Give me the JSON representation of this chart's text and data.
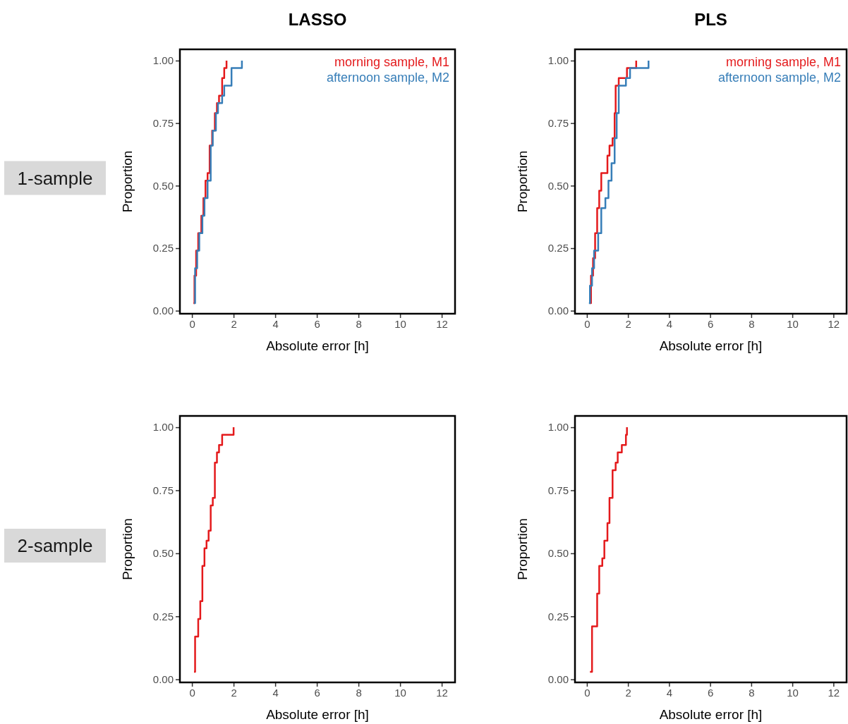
{
  "chart_data": [
    {
      "type": "step",
      "title": "LASSO",
      "annotations": [
        "1-sample"
      ],
      "xlabel": "Absolute error [h]",
      "ylabel": "Proportion",
      "xlim": [
        -0.58,
        12.64
      ],
      "ylim": [
        -0.012,
        1.045
      ],
      "xticks": [
        0,
        2,
        4,
        6,
        8,
        10,
        12
      ],
      "yticks": [
        {
          "value": 0,
          "label": "0.00"
        },
        {
          "value": 0.25,
          "label": "0.25"
        },
        {
          "value": 0.5,
          "label": "0.50"
        },
        {
          "value": 0.75,
          "label": "0.75"
        },
        {
          "value": 1,
          "label": "1.00"
        }
      ],
      "grid": false,
      "legend": "top right",
      "line_style": "solid",
      "marker": "none",
      "series": [
        {
          "name": "morning sample, M1",
          "color": "#e41a1c",
          "x": [
            0.07,
            0.12,
            0.2,
            0.3,
            0.45,
            0.55,
            0.65,
            0.75,
            0.85,
            0.97,
            1.1,
            1.2,
            1.3,
            1.45,
            1.55,
            1.66
          ],
          "values": [
            0.03,
            0.14,
            0.24,
            0.31,
            0.38,
            0.45,
            0.52,
            0.55,
            0.66,
            0.72,
            0.79,
            0.83,
            0.86,
            0.93,
            0.97,
            1.0
          ]
        },
        {
          "name": "afternoon sample, M2",
          "color": "#377eb8",
          "x": [
            0.1,
            0.15,
            0.25,
            0.35,
            0.5,
            0.6,
            0.75,
            0.9,
            1.0,
            1.15,
            1.25,
            1.45,
            1.55,
            1.9,
            2.4
          ],
          "values": [
            0.03,
            0.17,
            0.24,
            0.31,
            0.38,
            0.45,
            0.52,
            0.66,
            0.72,
            0.79,
            0.83,
            0.86,
            0.9,
            0.97,
            1.0
          ]
        }
      ]
    },
    {
      "type": "step",
      "title": "PLS",
      "xlabel": "Absolute error [h]",
      "ylabel": "Proportion",
      "xlim": [
        -0.58,
        12.64
      ],
      "ylim": [
        -0.012,
        1.045
      ],
      "xticks": [
        0,
        2,
        4,
        6,
        8,
        10,
        12
      ],
      "yticks": [
        {
          "value": 0,
          "label": "0.00"
        },
        {
          "value": 0.25,
          "label": "0.25"
        },
        {
          "value": 0.5,
          "label": "0.50"
        },
        {
          "value": 0.75,
          "label": "0.75"
        },
        {
          "value": 1,
          "label": "1.00"
        }
      ],
      "grid": false,
      "legend": "top right",
      "line_style": "solid",
      "marker": "none",
      "series": [
        {
          "name": "morning sample, M1",
          "color": "#e41a1c",
          "x": [
            0.15,
            0.2,
            0.3,
            0.4,
            0.5,
            0.6,
            0.7,
            1.0,
            1.1,
            1.25,
            1.35,
            1.4,
            1.55,
            1.95,
            2.4
          ],
          "values": [
            0.03,
            0.14,
            0.21,
            0.31,
            0.41,
            0.48,
            0.55,
            0.62,
            0.66,
            0.69,
            0.79,
            0.9,
            0.93,
            0.97,
            1.0
          ]
        },
        {
          "name": "afternoon sample, M2",
          "color": "#377eb8",
          "x": [
            0.1,
            0.15,
            0.25,
            0.35,
            0.55,
            0.7,
            0.9,
            1.05,
            1.2,
            1.35,
            1.45,
            1.55,
            1.9,
            2.1,
            3.0
          ],
          "values": [
            0.03,
            0.1,
            0.17,
            0.24,
            0.31,
            0.41,
            0.45,
            0.52,
            0.59,
            0.69,
            0.79,
            0.9,
            0.93,
            0.97,
            1.0
          ]
        }
      ]
    },
    {
      "type": "step",
      "annotations": [
        "2-sample"
      ],
      "xlabel": "Absolute error [h]",
      "ylabel": "Proportion",
      "xlim": [
        -0.58,
        12.64
      ],
      "ylim": [
        -0.012,
        1.045
      ],
      "xticks": [
        0,
        2,
        4,
        6,
        8,
        10,
        12
      ],
      "yticks": [
        {
          "value": 0,
          "label": "0.00"
        },
        {
          "value": 0.25,
          "label": "0.25"
        },
        {
          "value": 0.5,
          "label": "0.50"
        },
        {
          "value": 0.75,
          "label": "0.75"
        },
        {
          "value": 1,
          "label": "1.00"
        }
      ],
      "grid": false,
      "line_style": "solid",
      "marker": "none",
      "series": [
        {
          "color": "#e41a1c",
          "x": [
            0.1,
            0.15,
            0.3,
            0.4,
            0.5,
            0.6,
            0.7,
            0.8,
            0.9,
            1.0,
            1.1,
            1.2,
            1.3,
            1.45,
            2.0
          ],
          "values": [
            0.03,
            0.17,
            0.24,
            0.31,
            0.45,
            0.52,
            0.55,
            0.59,
            0.69,
            0.72,
            0.86,
            0.9,
            0.93,
            0.97,
            1.0
          ]
        }
      ]
    },
    {
      "type": "step",
      "xlabel": "Absolute error [h]",
      "ylabel": "Proportion",
      "xlim": [
        -0.58,
        12.64
      ],
      "ylim": [
        -0.012,
        1.045
      ],
      "xticks": [
        0,
        2,
        4,
        6,
        8,
        10,
        12
      ],
      "yticks": [
        {
          "value": 0,
          "label": "0.00"
        },
        {
          "value": 0.25,
          "label": "0.25"
        },
        {
          "value": 0.5,
          "label": "0.50"
        },
        {
          "value": 0.75,
          "label": "0.75"
        },
        {
          "value": 1,
          "label": "1.00"
        }
      ],
      "grid": false,
      "line_style": "solid",
      "marker": "none",
      "series": [
        {
          "color": "#e41a1c",
          "x": [
            0.15,
            0.25,
            0.5,
            0.6,
            0.75,
            0.85,
            1.0,
            1.1,
            1.25,
            1.4,
            1.5,
            1.7,
            1.9,
            1.95
          ],
          "values": [
            0.03,
            0.21,
            0.34,
            0.45,
            0.48,
            0.55,
            0.62,
            0.72,
            0.83,
            0.86,
            0.9,
            0.93,
            0.97,
            1.0
          ]
        }
      ]
    }
  ]
}
